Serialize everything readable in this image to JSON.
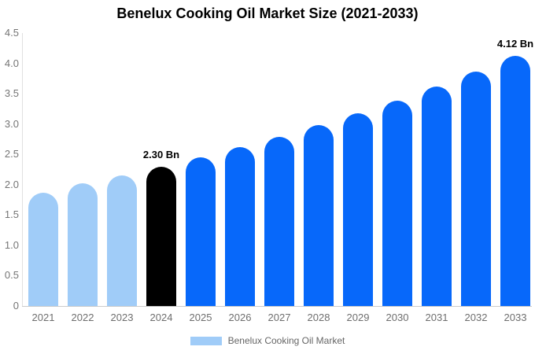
{
  "chart_data": {
    "type": "bar",
    "title": "Benelux Cooking Oil Market Size (2021-2033)",
    "xlabel": "",
    "ylabel": "",
    "categories": [
      "2021",
      "2022",
      "2023",
      "2024",
      "2025",
      "2026",
      "2027",
      "2028",
      "2029",
      "2030",
      "2031",
      "2032",
      "2033"
    ],
    "values": [
      1.87,
      2.02,
      2.15,
      2.3,
      2.45,
      2.62,
      2.79,
      2.98,
      3.18,
      3.39,
      3.62,
      3.86,
      4.12
    ],
    "bar_colors": [
      "#a0ccf8",
      "#a0ccf8",
      "#a0ccf8",
      "#000000",
      "#0768fa",
      "#0768fa",
      "#0768fa",
      "#0768fa",
      "#0768fa",
      "#0768fa",
      "#0768fa",
      "#0768fa",
      "#0768fa"
    ],
    "annotations": [
      {
        "category": "2024",
        "text": "2.30 Bn"
      },
      {
        "category": "2033",
        "text": "4.12 Bn"
      }
    ],
    "ylim": [
      0,
      4.5
    ],
    "ytick_labels": [
      "4.5",
      "4.0",
      "3.5",
      "3.0",
      "2.5",
      "2.0",
      "1.5",
      "1.0",
      "0.5",
      "0"
    ],
    "grid": false,
    "legend": {
      "label": "Benelux Cooking Oil Market",
      "swatch_color": "#a0ccf8",
      "position": "bottom"
    }
  },
  "colors": {
    "historical_bar": "#a0ccf8",
    "highlight_bar": "#000000",
    "forecast_bar": "#0768fa",
    "y_axis_line": "#e0e0e0",
    "x_axis_line": "#cccccc",
    "tick_text": "#757575",
    "legend_text": "#666666",
    "title_text": "#000000",
    "background": "#ffffff"
  }
}
